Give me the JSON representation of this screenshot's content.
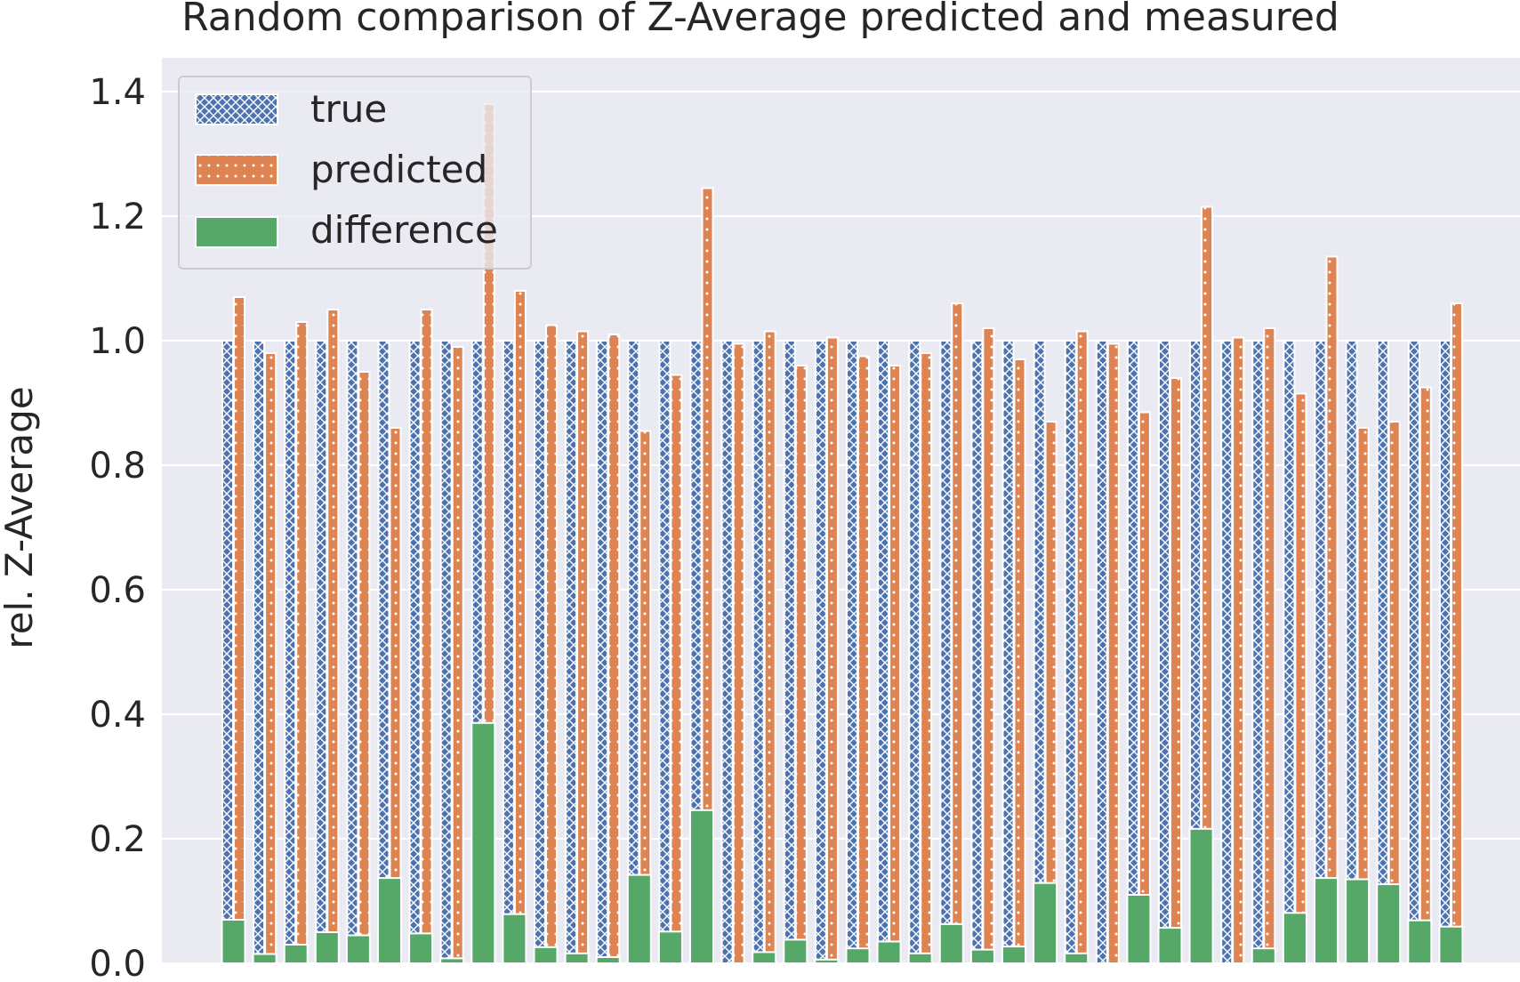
{
  "chart_data": {
    "type": "bar",
    "title": "Random comparison of Z-Average predicted and measured",
    "xlabel": "",
    "ylabel": "rel. Z-Average",
    "ylim": [
      0,
      1.45
    ],
    "yticks": [
      "0.0",
      "0.2",
      "0.4",
      "0.6",
      "0.8",
      "1.0",
      "1.2",
      "1.4"
    ],
    "grid": true,
    "legend_position": "top-left",
    "colors": {
      "background": "#eaeaf2",
      "grid": "#ffffff",
      "true": "#4c72b0",
      "predicted": "#dd8452",
      "difference": "#55a868"
    },
    "series": [
      {
        "name": "true",
        "hatch": "cross",
        "values": [
          1.0,
          1.0,
          1.0,
          1.0,
          1.0,
          1.0,
          1.0,
          1.0,
          1.0,
          1.0,
          1.0,
          1.0,
          1.0,
          1.0,
          1.0,
          1.0,
          1.0,
          1.0,
          1.0,
          1.0,
          1.0,
          1.0,
          1.0,
          1.0,
          1.0,
          1.0,
          1.0,
          1.0,
          1.0,
          1.0,
          1.0,
          1.0,
          1.0,
          1.0,
          1.0,
          1.0,
          1.0,
          1.0,
          1.0,
          1.0
        ]
      },
      {
        "name": "predicted",
        "hatch": "dots",
        "values": [
          1.07,
          0.98,
          1.03,
          1.05,
          0.95,
          0.86,
          1.05,
          0.99,
          1.38,
          1.08,
          1.025,
          1.015,
          1.01,
          0.855,
          0.945,
          1.245,
          0.995,
          1.015,
          0.96,
          1.005,
          0.975,
          0.96,
          0.98,
          1.06,
          1.02,
          0.97,
          0.87,
          1.015,
          0.995,
          0.885,
          0.94,
          1.215,
          1.005,
          1.02,
          0.915,
          1.135,
          0.86,
          0.87,
          0.925,
          1.06
        ]
      },
      {
        "name": "difference",
        "hatch": "none",
        "values": [
          0.07,
          0.015,
          0.03,
          0.05,
          0.045,
          0.137,
          0.048,
          0.008,
          0.386,
          0.079,
          0.026,
          0.016,
          0.01,
          0.142,
          0.051,
          0.246,
          0.0,
          0.018,
          0.038,
          0.006,
          0.024,
          0.035,
          0.016,
          0.063,
          0.022,
          0.027,
          0.129,
          0.016,
          0.0,
          0.11,
          0.057,
          0.216,
          0.0,
          0.024,
          0.081,
          0.137,
          0.135,
          0.127,
          0.069,
          0.059
        ]
      }
    ]
  }
}
